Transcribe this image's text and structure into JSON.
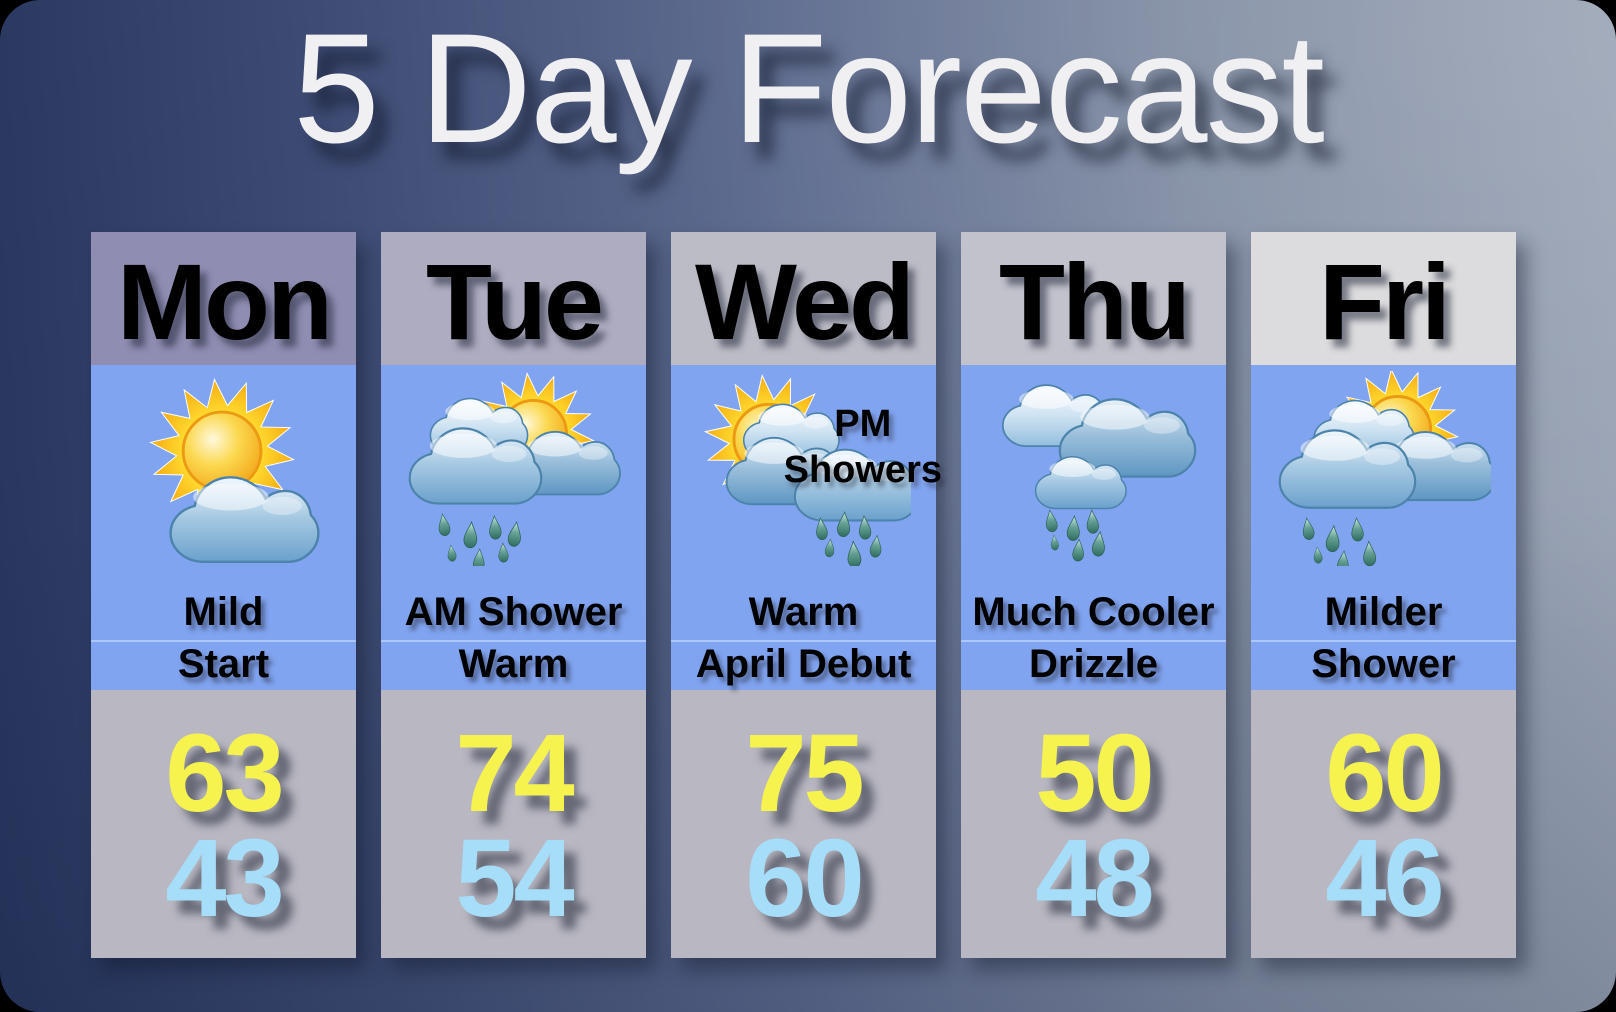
{
  "title": "5 Day Forecast",
  "colors": {
    "sky_panel": "#81a4f0",
    "temps_panel": "#b9b8c2",
    "high_temp": "#f6f34e",
    "low_temp": "#a6ddf8"
  },
  "columns": [
    {
      "day": "Mon",
      "header_bg": "#8f8db2",
      "icon": "sun-behind-cloud-icon",
      "desc_line1": "Mild",
      "desc_line2": "Start",
      "high": "63",
      "low": "43"
    },
    {
      "day": "Tue",
      "header_bg": "#aeacc0",
      "icon": "sun-clouds-rain-icon",
      "desc_line1": "AM Shower",
      "desc_line2": "Warm",
      "high": "74",
      "low": "54"
    },
    {
      "day": "Wed",
      "header_bg": "#bcbcc6",
      "icon": "sun-clouds-rain-icon",
      "icon_label_line1": "PM",
      "icon_label_line2": "Showers",
      "desc_line1": "Warm",
      "desc_line2": "April Debut",
      "high": "75",
      "low": "60"
    },
    {
      "day": "Thu",
      "header_bg": "#c2c2cc",
      "icon": "rain-clouds-icon",
      "desc_line1": "Much Cooler",
      "desc_line2": "Drizzle",
      "high": "50",
      "low": "48"
    },
    {
      "day": "Fri",
      "header_bg": "#dcdcde",
      "icon": "sun-clouds-rain-icon",
      "desc_line1": "Milder",
      "desc_line2": "Shower",
      "high": "60",
      "low": "46"
    }
  ],
  "chart_data": {
    "type": "table",
    "title": "5 Day Forecast",
    "categories": [
      "Mon",
      "Tue",
      "Wed",
      "Thu",
      "Fri"
    ],
    "series": [
      {
        "name": "High",
        "values": [
          63,
          74,
          75,
          50,
          60
        ]
      },
      {
        "name": "Low",
        "values": [
          43,
          54,
          60,
          48,
          46
        ]
      },
      {
        "name": "Conditions",
        "values": [
          "Mild Start",
          "AM Shower, Warm",
          "Warm, April Debut, PM Showers",
          "Much Cooler, Drizzle",
          "Milder, Shower"
        ]
      }
    ],
    "legend_position": "none",
    "grid": false
  }
}
